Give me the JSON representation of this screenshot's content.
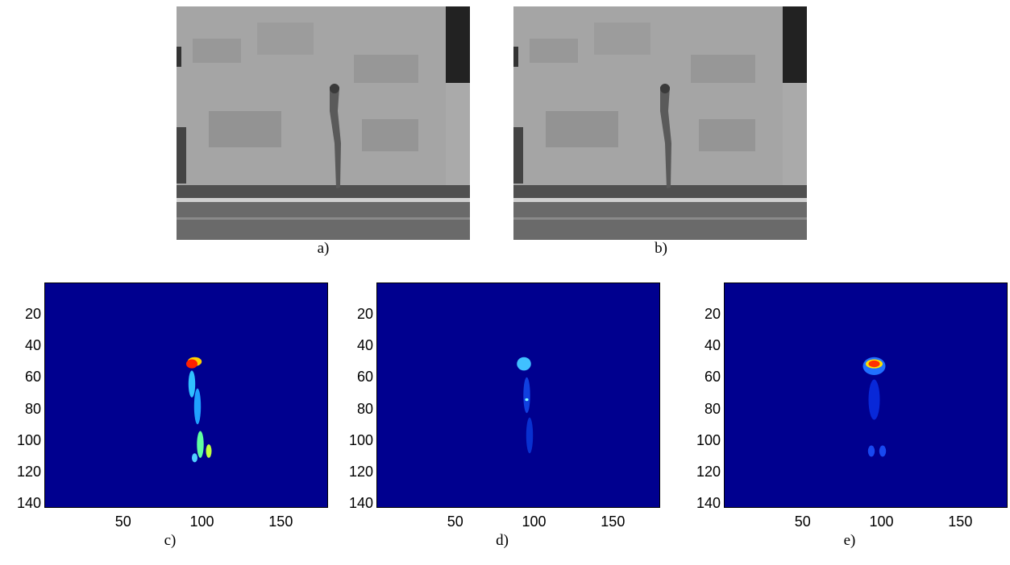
{
  "top_panels": [
    {
      "caption": "a)"
    },
    {
      "caption": "b)"
    }
  ],
  "heatmap_panels": [
    {
      "caption": "c)"
    },
    {
      "caption": "d)"
    },
    {
      "caption": "e)"
    }
  ],
  "chart_data": [
    {
      "type": "heatmap",
      "xticks": [
        50,
        100,
        150
      ],
      "yticks": [
        20,
        40,
        60,
        80,
        100,
        120,
        140
      ],
      "xlim": [
        0,
        180
      ],
      "ylim": [
        0,
        143
      ],
      "colormap": "jet",
      "grid": false
    },
    {
      "type": "heatmap",
      "xticks": [
        50,
        100,
        150
      ],
      "yticks": [
        20,
        40,
        60,
        80,
        100,
        120,
        140
      ],
      "xlim": [
        0,
        180
      ],
      "ylim": [
        0,
        143
      ],
      "colormap": "jet",
      "grid": false
    },
    {
      "type": "heatmap",
      "xticks": [
        50,
        100,
        150
      ],
      "yticks": [
        20,
        40,
        60,
        80,
        100,
        120,
        140
      ],
      "xlim": [
        0,
        180
      ],
      "ylim": [
        0,
        143
      ],
      "colormap": "jet",
      "grid": false
    }
  ],
  "colors": {
    "heatmap_background": "#00008f",
    "photo_wall": "#9a9a9a",
    "photo_ground": "#6a6a6a"
  }
}
